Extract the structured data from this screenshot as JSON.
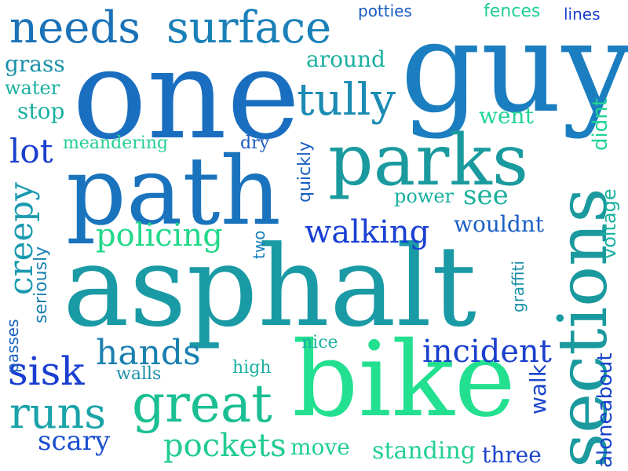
{
  "palette": {
    "blue_deep": "#1133cc",
    "blue": "#1a5fc4",
    "blue_steel": "#1c78b8",
    "teal": "#17a3a0",
    "teal_green": "#1cc08a",
    "green": "#22dd88"
  },
  "words": [
    {
      "text": "asphalt",
      "color": "#1a9aa5"
    },
    {
      "text": "bike",
      "color": "#23e090"
    },
    {
      "text": "one",
      "color": "#1a6ec0"
    },
    {
      "text": "guy",
      "color": "#1a7ec0"
    },
    {
      "text": "path",
      "color": "#1a73bd"
    },
    {
      "text": "parks",
      "color": "#1a9a9e"
    },
    {
      "text": "sections",
      "color": "#1a9a9e"
    },
    {
      "text": "needs",
      "color": "#1a72b8"
    },
    {
      "text": "surface",
      "color": "#1a80b8"
    },
    {
      "text": "tully",
      "color": "#1a8bb3"
    },
    {
      "text": "great",
      "color": "#1abf93"
    },
    {
      "text": "runs",
      "color": "#1aa3a8"
    },
    {
      "text": "sisk",
      "color": "#1a3fd0"
    },
    {
      "text": "hands",
      "color": "#1a80b0"
    },
    {
      "text": "incident",
      "color": "#1a40cc"
    },
    {
      "text": "walking",
      "color": "#1a40d4"
    },
    {
      "text": "policing",
      "color": "#22d88a"
    },
    {
      "text": "creepy",
      "color": "#1a9ab0"
    },
    {
      "text": "lot",
      "color": "#1a3fd0"
    },
    {
      "text": "pockets",
      "color": "#22cc90"
    },
    {
      "text": "standing",
      "color": "#22d090"
    },
    {
      "text": "scary",
      "color": "#1a4fd0"
    },
    {
      "text": "three",
      "color": "#1a44cc"
    },
    {
      "text": "move",
      "color": "#22cf92"
    },
    {
      "text": "see",
      "color": "#1ab09a"
    },
    {
      "text": "power",
      "color": "#1ab0a0"
    },
    {
      "text": "wouldnt",
      "color": "#1a60c4"
    },
    {
      "text": "went",
      "color": "#22d494"
    },
    {
      "text": "around",
      "color": "#1ab0a0"
    },
    {
      "text": "grass",
      "color": "#1a90a8"
    },
    {
      "text": "water",
      "color": "#1ab0a0"
    },
    {
      "text": "stop",
      "color": "#1ab0a0"
    },
    {
      "text": "meandering",
      "color": "#22cf92"
    },
    {
      "text": "dry",
      "color": "#1a5cc0"
    },
    {
      "text": "quickly",
      "color": "#1a60c4"
    },
    {
      "text": "seriously",
      "color": "#1a80b0"
    },
    {
      "text": "two",
      "color": "#1a80b8"
    },
    {
      "text": "passes",
      "color": "#1a60c4"
    },
    {
      "text": "walls",
      "color": "#1a90a8"
    },
    {
      "text": "high",
      "color": "#1ab0a0"
    },
    {
      "text": "nice",
      "color": "#1ab0a0"
    },
    {
      "text": "potties",
      "color": "#1a5cc0"
    },
    {
      "text": "fences",
      "color": "#22cf92"
    },
    {
      "text": "lines",
      "color": "#1a3fd0"
    },
    {
      "text": "didnt",
      "color": "#22d494"
    },
    {
      "text": "voltage",
      "color": "#1ab0a0"
    },
    {
      "text": "graffiti",
      "color": "#1a90a8"
    },
    {
      "text": "walk",
      "color": "#1a44cc"
    },
    {
      "text": "aloneabout",
      "color": "#1a44cc"
    }
  ]
}
